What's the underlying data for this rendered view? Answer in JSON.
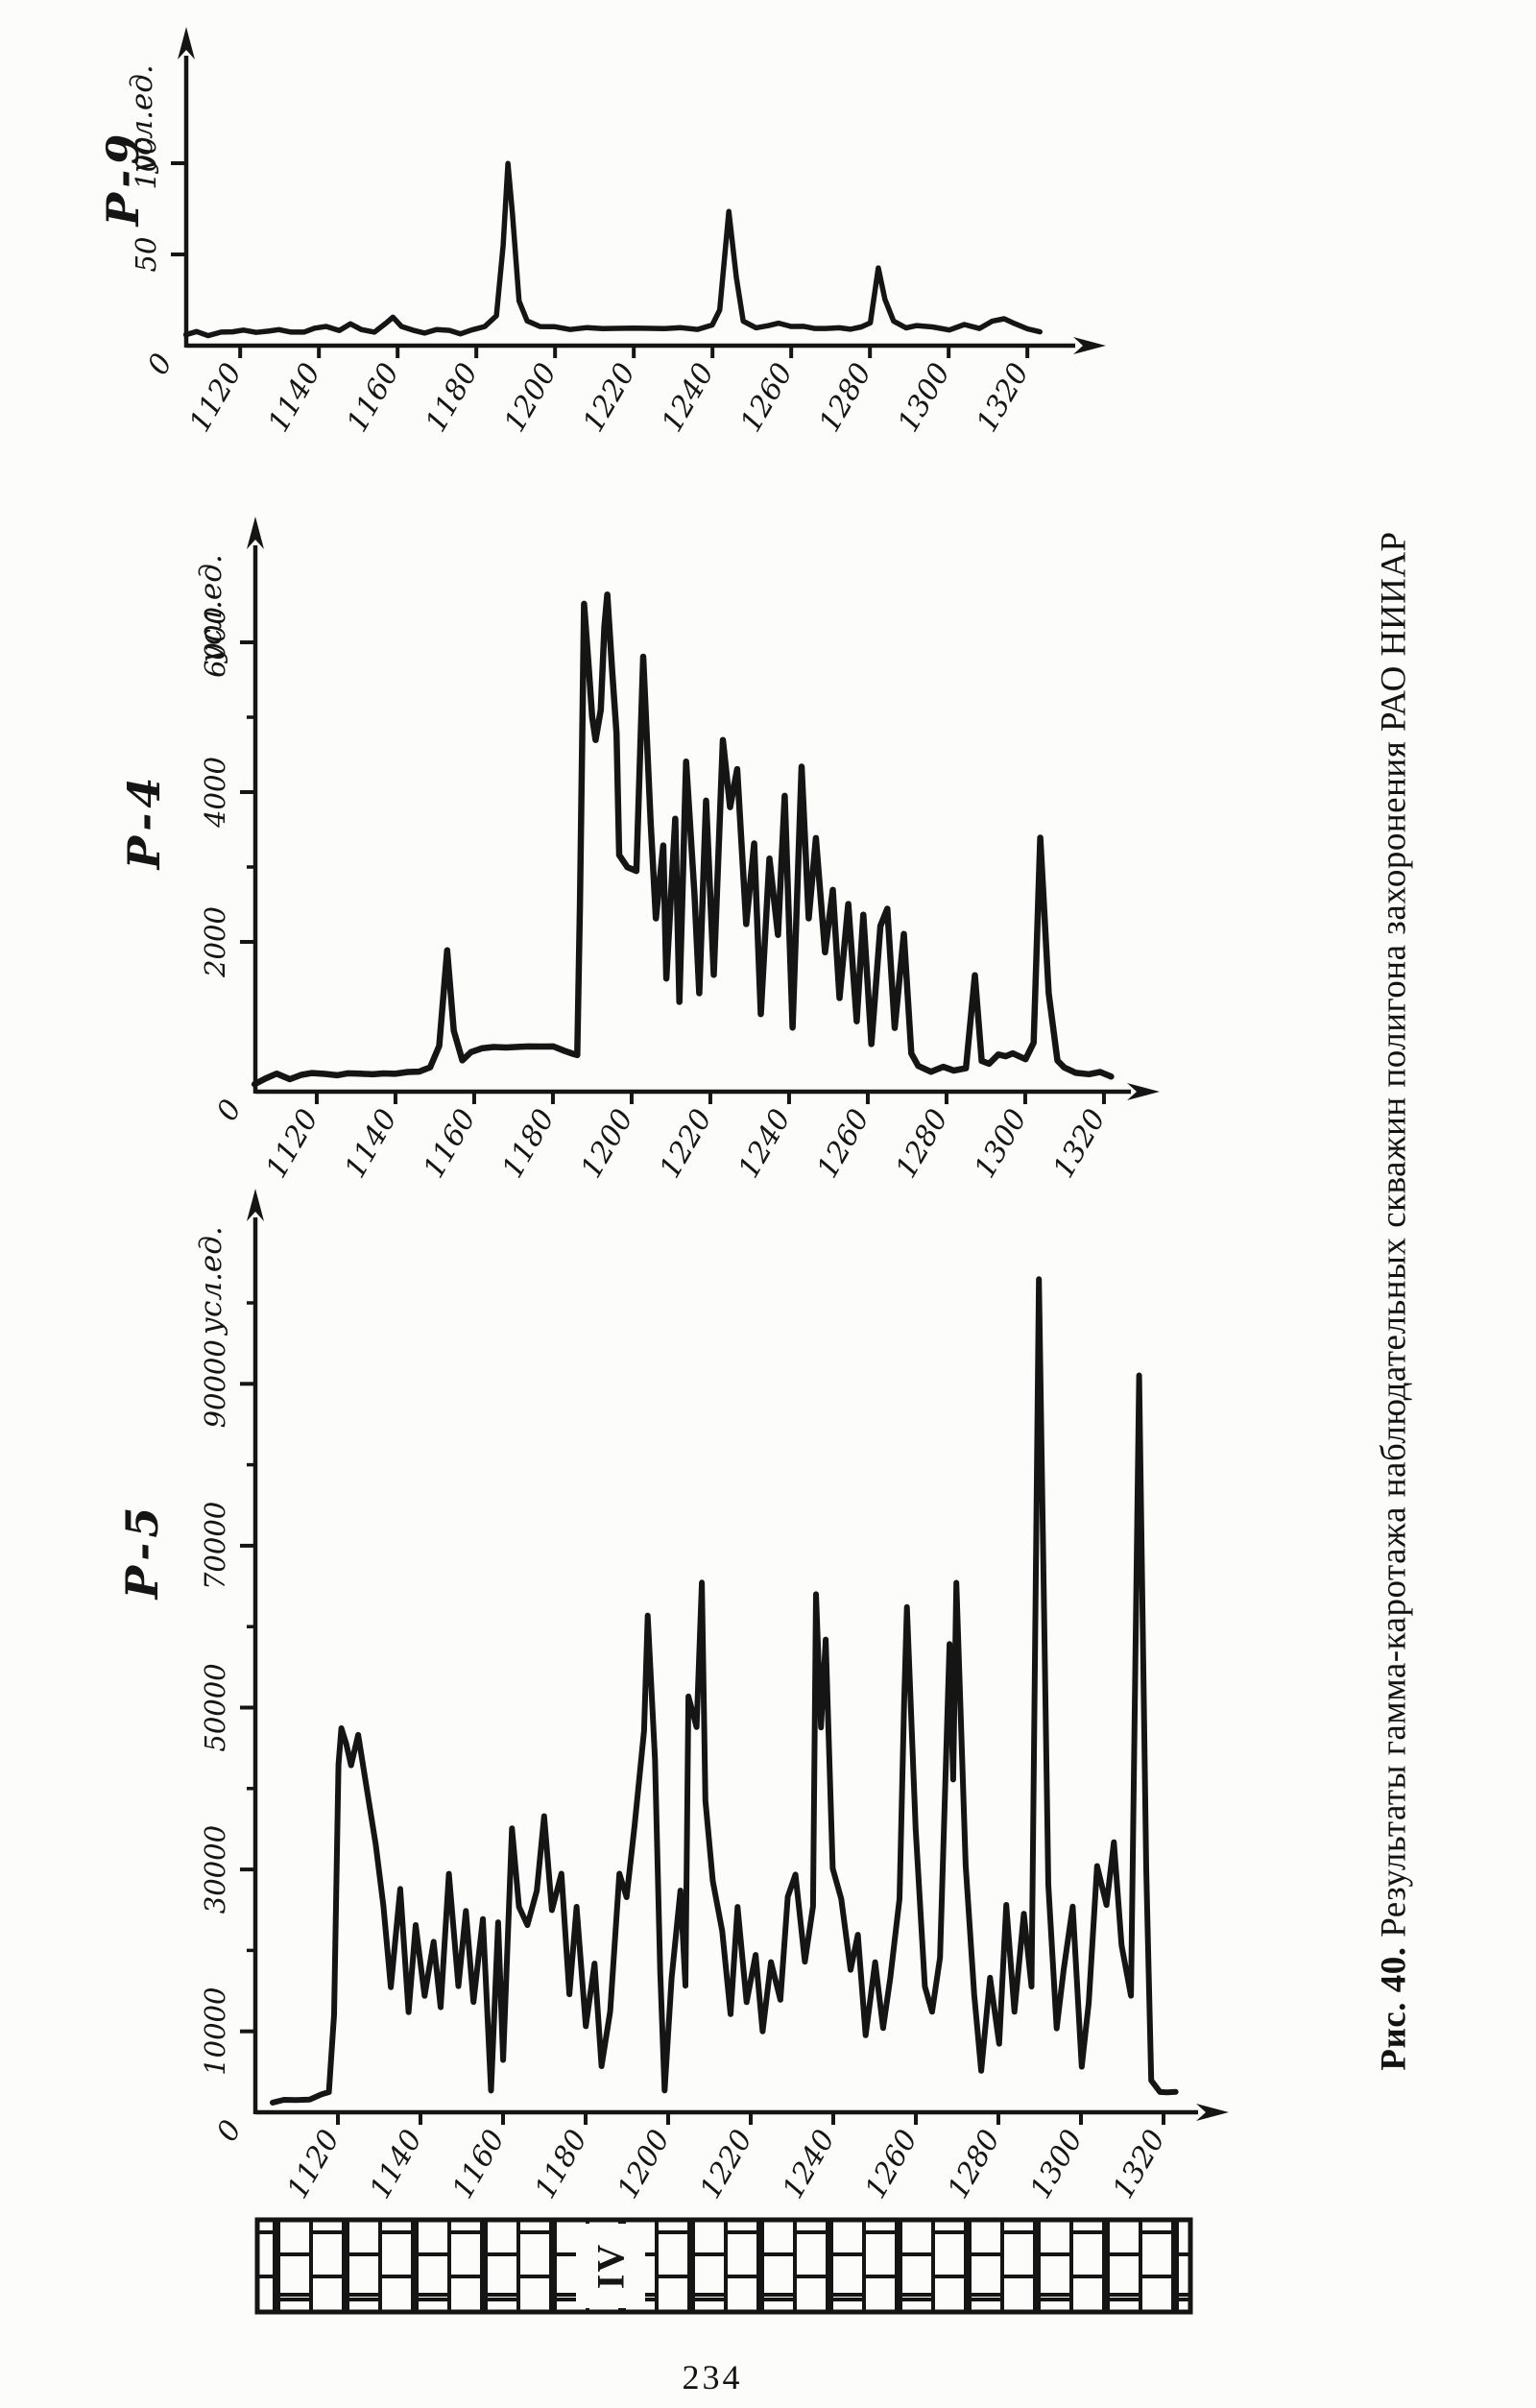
{
  "page": {
    "number": "234",
    "paper_color": "#fcfcfa",
    "ink_color": "#151515"
  },
  "figure_caption": {
    "label": "Рис. 40.",
    "text": " Результаты гамма-каротажа наблюдательных скважин полигона захоронения РАО НИИАР"
  },
  "lithology": {
    "label": "IV",
    "pattern": "brick-limestone-strip"
  },
  "chart_data": [
    {
      "type": "line",
      "well": "Р-9",
      "ylabel": "усл.ед.",
      "origin_label": "0",
      "x_ticks": [
        1120,
        1140,
        1160,
        1180,
        1200,
        1220,
        1240,
        1260,
        1280,
        1300,
        1320
      ],
      "y_major_ticks": [
        50,
        100
      ],
      "y_minor_ticks": [],
      "xlim": [
        1106,
        1330
      ],
      "ylim": [
        0,
        115
      ],
      "x": [
        1106,
        1109,
        1112,
        1115,
        1118,
        1121,
        1124,
        1127,
        1130,
        1133,
        1136,
        1139,
        1142,
        1145,
        1148,
        1151,
        1154,
        1157,
        1159,
        1161,
        1164,
        1167,
        1170,
        1173,
        1176,
        1179,
        1182,
        1185,
        1187,
        1188,
        1189,
        1191,
        1193,
        1196,
        1200,
        1204,
        1208,
        1212,
        1216,
        1220,
        1224,
        1228,
        1232,
        1236,
        1240,
        1242,
        1244,
        1246,
        1248,
        1251,
        1254,
        1257,
        1260,
        1263,
        1266,
        1269,
        1272,
        1275,
        1278,
        1280,
        1282,
        1284,
        1286,
        1289,
        1292,
        1296,
        1300,
        1304,
        1308,
        1311,
        1314,
        1317,
        1320,
        1323
      ],
      "y": [
        6,
        8,
        5,
        8,
        7,
        9,
        7,
        8,
        9,
        7,
        8,
        9,
        11,
        8,
        12,
        9,
        7,
        13,
        15,
        11,
        8,
        7,
        9,
        8,
        7,
        8,
        11,
        16,
        55,
        100,
        72,
        25,
        13,
        11,
        10,
        9,
        10,
        9,
        10,
        9,
        10,
        9,
        10,
        9,
        11,
        20,
        73,
        38,
        13,
        10,
        11,
        12,
        11,
        10,
        10,
        9,
        10,
        9,
        10,
        13,
        42,
        26,
        13,
        10,
        11,
        10,
        9,
        11,
        10,
        13,
        15,
        12,
        9,
        8
      ]
    },
    {
      "type": "line",
      "well": "Р-4",
      "ylabel": "усл.ед.",
      "origin_label": "0",
      "x_ticks": [
        1120,
        1140,
        1160,
        1180,
        1200,
        1220,
        1240,
        1260,
        1280,
        1300,
        1320
      ],
      "y_major_ticks": [
        2000,
        4000,
        6000
      ],
      "y_minor_ticks": [
        3000,
        5000
      ],
      "xlim": [
        1104,
        1330
      ],
      "ylim": [
        0,
        7200
      ],
      "x": [
        1104,
        1107,
        1110,
        1113,
        1116,
        1119,
        1122,
        1125,
        1128,
        1131,
        1134,
        1137,
        1140,
        1143,
        1146,
        1149,
        1151,
        1153,
        1155,
        1157,
        1159,
        1162,
        1165,
        1168,
        1171,
        1174,
        1177,
        1180,
        1183,
        1185,
        1186,
        1187,
        1188,
        1189,
        1190,
        1191,
        1192,
        1193,
        1194,
        1195,
        1196,
        1197,
        1199,
        1201,
        1203,
        1205,
        1206,
        1208,
        1209,
        1211,
        1212,
        1214,
        1216,
        1217,
        1219,
        1221,
        1223,
        1225,
        1227,
        1229,
        1231,
        1233,
        1235,
        1237,
        1239,
        1241,
        1243,
        1245,
        1247,
        1249,
        1251,
        1253,
        1255,
        1257,
        1259,
        1261,
        1263,
        1265,
        1267,
        1269,
        1271,
        1273,
        1276,
        1279,
        1282,
        1285,
        1287,
        1289,
        1291,
        1293,
        1295,
        1297,
        1300,
        1302,
        1304,
        1306,
        1308,
        1310,
        1313,
        1316,
        1319,
        1322
      ],
      "y": [
        100,
        180,
        230,
        180,
        210,
        260,
        230,
        220,
        250,
        230,
        245,
        230,
        250,
        255,
        270,
        330,
        600,
        1900,
        800,
        430,
        520,
        580,
        600,
        580,
        610,
        590,
        615,
        595,
        550,
        510,
        480,
        2500,
        6500,
        5600,
        5000,
        4700,
        5100,
        6200,
        6650,
        5600,
        4800,
        3150,
        3000,
        2950,
        5800,
        3600,
        2300,
        3300,
        1500,
        3650,
        1200,
        4400,
        2650,
        1300,
        3900,
        1550,
        4700,
        3800,
        4300,
        2250,
        3300,
        1050,
        3100,
        2100,
        3950,
        850,
        4350,
        2300,
        3400,
        1850,
        2700,
        1250,
        2500,
        950,
        2350,
        650,
        2200,
        2450,
        850,
        2100,
        520,
        330,
        280,
        320,
        290,
        310,
        1550,
        420,
        360,
        510,
        460,
        520,
        430,
        650,
        3400,
        1300,
        430,
        310,
        260,
        230,
        260,
        210
      ]
    },
    {
      "type": "line",
      "well": "Р-5",
      "ylabel": "усл.ед.",
      "origin_label": "0",
      "x_ticks": [
        1120,
        1140,
        1160,
        1180,
        1200,
        1220,
        1240,
        1260,
        1280,
        1300,
        1320
      ],
      "y_major_ticks": [
        10000,
        30000,
        50000,
        70000,
        90000
      ],
      "y_minor_ticks": [
        20000,
        40000,
        60000,
        80000,
        100000
      ],
      "xlim": [
        1100,
        1330
      ],
      "ylim": [
        0,
        112000
      ],
      "x": [
        1104,
        1107,
        1110,
        1113,
        1116,
        1118,
        1119,
        1120,
        1121,
        1122,
        1123,
        1125,
        1127,
        1129,
        1131,
        1133,
        1135,
        1137,
        1139,
        1141,
        1143,
        1145,
        1147,
        1149,
        1151,
        1153,
        1155,
        1157,
        1159,
        1160,
        1162,
        1164,
        1166,
        1168,
        1170,
        1172,
        1174,
        1176,
        1178,
        1180,
        1182,
        1184,
        1186,
        1188,
        1190,
        1192,
        1194,
        1195,
        1197,
        1198,
        1199,
        1201,
        1203,
        1204,
        1205,
        1207,
        1208,
        1209,
        1211,
        1213,
        1215,
        1217,
        1219,
        1221,
        1223,
        1225,
        1227,
        1229,
        1231,
        1233,
        1235,
        1236,
        1237,
        1238,
        1240,
        1242,
        1244,
        1246,
        1248,
        1250,
        1252,
        1254,
        1256,
        1257,
        1258,
        1260,
        1262,
        1264,
        1266,
        1268,
        1269,
        1270,
        1272,
        1274,
        1276,
        1278,
        1280,
        1282,
        1284,
        1286,
        1288,
        1290,
        1292,
        1294,
        1296,
        1298,
        1300,
        1302,
        1304,
        1306,
        1308,
        1310,
        1312,
        1314,
        1316,
        1317,
        1319,
        1321,
        1323
      ],
      "y": [
        1200,
        1600,
        1400,
        1700,
        2100,
        2600,
        12000,
        43000,
        47500,
        45500,
        43000,
        46500,
        40500,
        33000,
        25500,
        15500,
        27500,
        12500,
        23000,
        14500,
        21000,
        13000,
        29500,
        15500,
        25000,
        13500,
        24000,
        2600,
        23500,
        6500,
        35000,
        25500,
        23000,
        27500,
        36500,
        25000,
        29500,
        14500,
        25500,
        10500,
        18500,
        5600,
        12500,
        29500,
        26500,
        35500,
        47000,
        61500,
        43500,
        17500,
        2700,
        16500,
        27500,
        15500,
        51500,
        47500,
        65500,
        38500,
        28500,
        22500,
        12000,
        25500,
        13500,
        19500,
        10000,
        18500,
        14000,
        26500,
        29500,
        18500,
        25500,
        64000,
        47500,
        58500,
        30000,
        26500,
        17500,
        22000,
        9500,
        18500,
        10500,
        16500,
        26500,
        50500,
        62500,
        35000,
        15500,
        12500,
        19000,
        58000,
        41000,
        65500,
        30500,
        14500,
        5200,
        16500,
        8600,
        25500,
        12500,
        24500,
        15500,
        103000,
        28000,
        10500,
        17500,
        25500,
        5600,
        13500,
        30500,
        25500,
        33500,
        20500,
        14500,
        91000,
        30000,
        4000,
        2400,
        2600,
        2400
      ]
    }
  ]
}
